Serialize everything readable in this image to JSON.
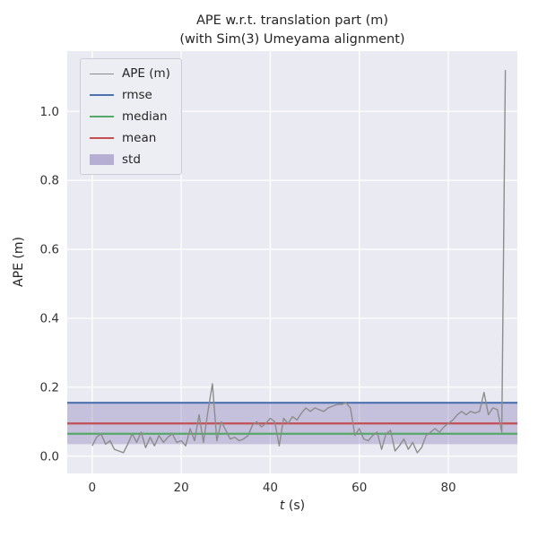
{
  "figure": {
    "title_line1": "APE w.r.t. translation part (m)",
    "title_line2": "(with Sim(3) Umeyama alignment)",
    "xlabel_var": "t",
    "xlabel_unit": " (s)",
    "ylabel": "APE (m)"
  },
  "legend": {
    "entries": [
      {
        "label": "APE (m)",
        "type": "line",
        "color": "#8c8c8c",
        "thickness": 1.5
      },
      {
        "label": "rmse",
        "type": "line",
        "color": "#4c72b0",
        "thickness": 2.5
      },
      {
        "label": "median",
        "type": "line",
        "color": "#55a868",
        "thickness": 2.5
      },
      {
        "label": "mean",
        "type": "line",
        "color": "#c44e52",
        "thickness": 2.5
      },
      {
        "label": "std",
        "type": "patch",
        "color": "#8172b2",
        "thickness": 0
      }
    ]
  },
  "colors": {
    "axes_bg": "#eaeaf2",
    "grid": "#ffffff",
    "ape": "#8c8c8c",
    "rmse": "#4c72b0",
    "median": "#55a868",
    "mean": "#c44e52",
    "std_fill": "#8172b2",
    "text": "#333333"
  },
  "chart_data": {
    "type": "line",
    "title": "APE w.r.t. translation part (m)\n(with Sim(3) Umeyama alignment)",
    "xlabel": "t (s)",
    "ylabel": "APE (m)",
    "xlim": [
      -5.6,
      95.5
    ],
    "ylim": [
      -0.05,
      1.175
    ],
    "xticks": [
      0,
      20,
      40,
      60,
      80
    ],
    "yticks": [
      0.0,
      0.2,
      0.4,
      0.6,
      0.8,
      1.0
    ],
    "grid": true,
    "legend_position": "upper left",
    "stats": {
      "rmse": 0.155,
      "mean": 0.095,
      "median": 0.065,
      "std": 0.06
    },
    "series": [
      {
        "name": "APE (m)",
        "x": [
          0,
          1,
          2,
          3,
          4,
          5,
          6,
          7,
          8,
          9,
          10,
          11,
          12,
          13,
          14,
          15,
          16,
          17,
          18,
          19,
          20,
          21,
          22,
          23,
          24,
          25,
          26,
          27,
          28,
          29,
          30,
          31,
          32,
          33,
          34,
          35,
          36,
          37,
          38,
          39,
          40,
          41,
          42,
          43,
          44,
          45,
          46,
          47,
          48,
          49,
          50,
          51,
          52,
          53,
          54,
          55,
          56,
          57,
          58,
          59,
          60,
          61,
          62,
          63,
          64,
          65,
          66,
          67,
          68,
          69,
          70,
          71,
          72,
          73,
          74,
          75,
          76,
          77,
          78,
          79,
          80,
          81,
          82,
          83,
          84,
          85,
          86,
          87,
          88,
          89,
          90,
          91,
          92,
          92.8
        ],
        "y": [
          0.03,
          0.055,
          0.065,
          0.035,
          0.045,
          0.02,
          0.015,
          0.01,
          0.035,
          0.065,
          0.04,
          0.07,
          0.025,
          0.055,
          0.03,
          0.06,
          0.04,
          0.055,
          0.065,
          0.04,
          0.045,
          0.03,
          0.08,
          0.045,
          0.12,
          0.04,
          0.13,
          0.21,
          0.045,
          0.1,
          0.075,
          0.05,
          0.055,
          0.045,
          0.05,
          0.06,
          0.09,
          0.1,
          0.085,
          0.095,
          0.11,
          0.1,
          0.03,
          0.11,
          0.095,
          0.115,
          0.105,
          0.125,
          0.14,
          0.13,
          0.14,
          0.135,
          0.13,
          0.14,
          0.145,
          0.15,
          0.15,
          0.155,
          0.14,
          0.06,
          0.08,
          0.05,
          0.045,
          0.06,
          0.07,
          0.02,
          0.065,
          0.075,
          0.015,
          0.03,
          0.05,
          0.02,
          0.04,
          0.01,
          0.025,
          0.06,
          0.07,
          0.08,
          0.07,
          0.085,
          0.095,
          0.105,
          0.12,
          0.13,
          0.12,
          0.13,
          0.125,
          0.13,
          0.185,
          0.12,
          0.14,
          0.135,
          0.07,
          1.12
        ]
      }
    ]
  }
}
